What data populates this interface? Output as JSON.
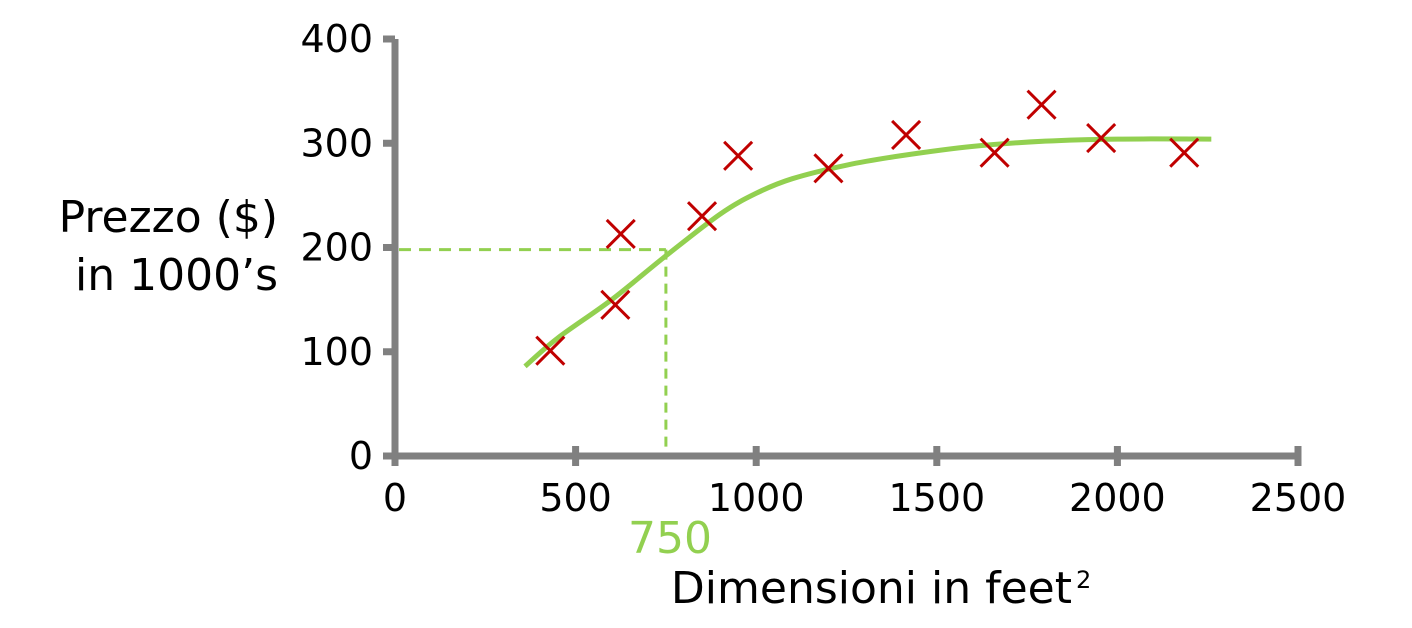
{
  "chart_data": {
    "type": "scatter",
    "title": "",
    "xlabel": "Dimensioni in feet",
    "xlabel_superscript": "2",
    "ylabel_line1": "Prezzo ($)",
    "ylabel_line2": "in 1000’s",
    "xlim": [
      0,
      2500
    ],
    "ylim": [
      0,
      400
    ],
    "x_ticks": [
      0,
      500,
      1000,
      1500,
      2000,
      2500
    ],
    "y_ticks": [
      0,
      100,
      200,
      300,
      400
    ],
    "x_tick_labels": [
      "0",
      "500",
      "1000",
      "1500",
      "2000",
      "2500"
    ],
    "y_tick_labels": [
      "0",
      "100",
      "200",
      "300",
      "400"
    ],
    "grid": false,
    "points": [
      {
        "x": 430,
        "y": 101
      },
      {
        "x": 610,
        "y": 145
      },
      {
        "x": 625,
        "y": 213
      },
      {
        "x": 850,
        "y": 230
      },
      {
        "x": 950,
        "y": 288
      },
      {
        "x": 1200,
        "y": 276
      },
      {
        "x": 1415,
        "y": 308
      },
      {
        "x": 1660,
        "y": 291
      },
      {
        "x": 1790,
        "y": 337
      },
      {
        "x": 1955,
        "y": 305
      },
      {
        "x": 2185,
        "y": 291
      }
    ],
    "fit_curve": [
      {
        "x": 360,
        "y": 86
      },
      {
        "x": 450,
        "y": 113
      },
      {
        "x": 600,
        "y": 150
      },
      {
        "x": 750,
        "y": 192
      },
      {
        "x": 900,
        "y": 232
      },
      {
        "x": 1000,
        "y": 252
      },
      {
        "x": 1100,
        "y": 266
      },
      {
        "x": 1250,
        "y": 279
      },
      {
        "x": 1400,
        "y": 288
      },
      {
        "x": 1600,
        "y": 297
      },
      {
        "x": 1800,
        "y": 302
      },
      {
        "x": 2000,
        "y": 304
      },
      {
        "x": 2260,
        "y": 304
      }
    ],
    "highlight": {
      "x": 750,
      "y": 198,
      "label": "750"
    },
    "colors": {
      "axis": "#808080",
      "points": "#c00000",
      "curve": "#92d050",
      "text": "#000000"
    }
  }
}
